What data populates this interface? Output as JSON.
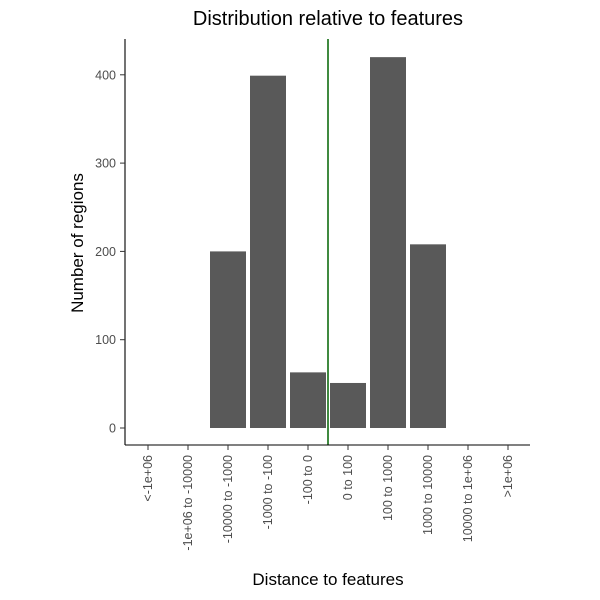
{
  "chart_data": {
    "type": "bar",
    "title": "Distribution relative to features",
    "xlabel": "Distance to features",
    "ylabel": "Number of regions",
    "categories": [
      "<-1e+06",
      "-1e+06 to -10000",
      "-10000 to -1000",
      "-1000 to -100",
      "-100 to 0",
      "0 to 100",
      "100 to 1000",
      "1000 to 10000",
      "10000 to 1e+06",
      ">1e+06"
    ],
    "values": [
      0,
      0,
      200,
      399,
      63,
      51,
      420,
      208,
      0,
      0
    ],
    "ylim": [
      0,
      440
    ],
    "yticks": [
      0,
      100,
      200,
      300,
      400
    ],
    "reference_line": {
      "position": "between -100 to 0 and 0 to 100",
      "color": "#006400"
    },
    "bar_color": "#595959",
    "grid": false,
    "legend": "none"
  }
}
